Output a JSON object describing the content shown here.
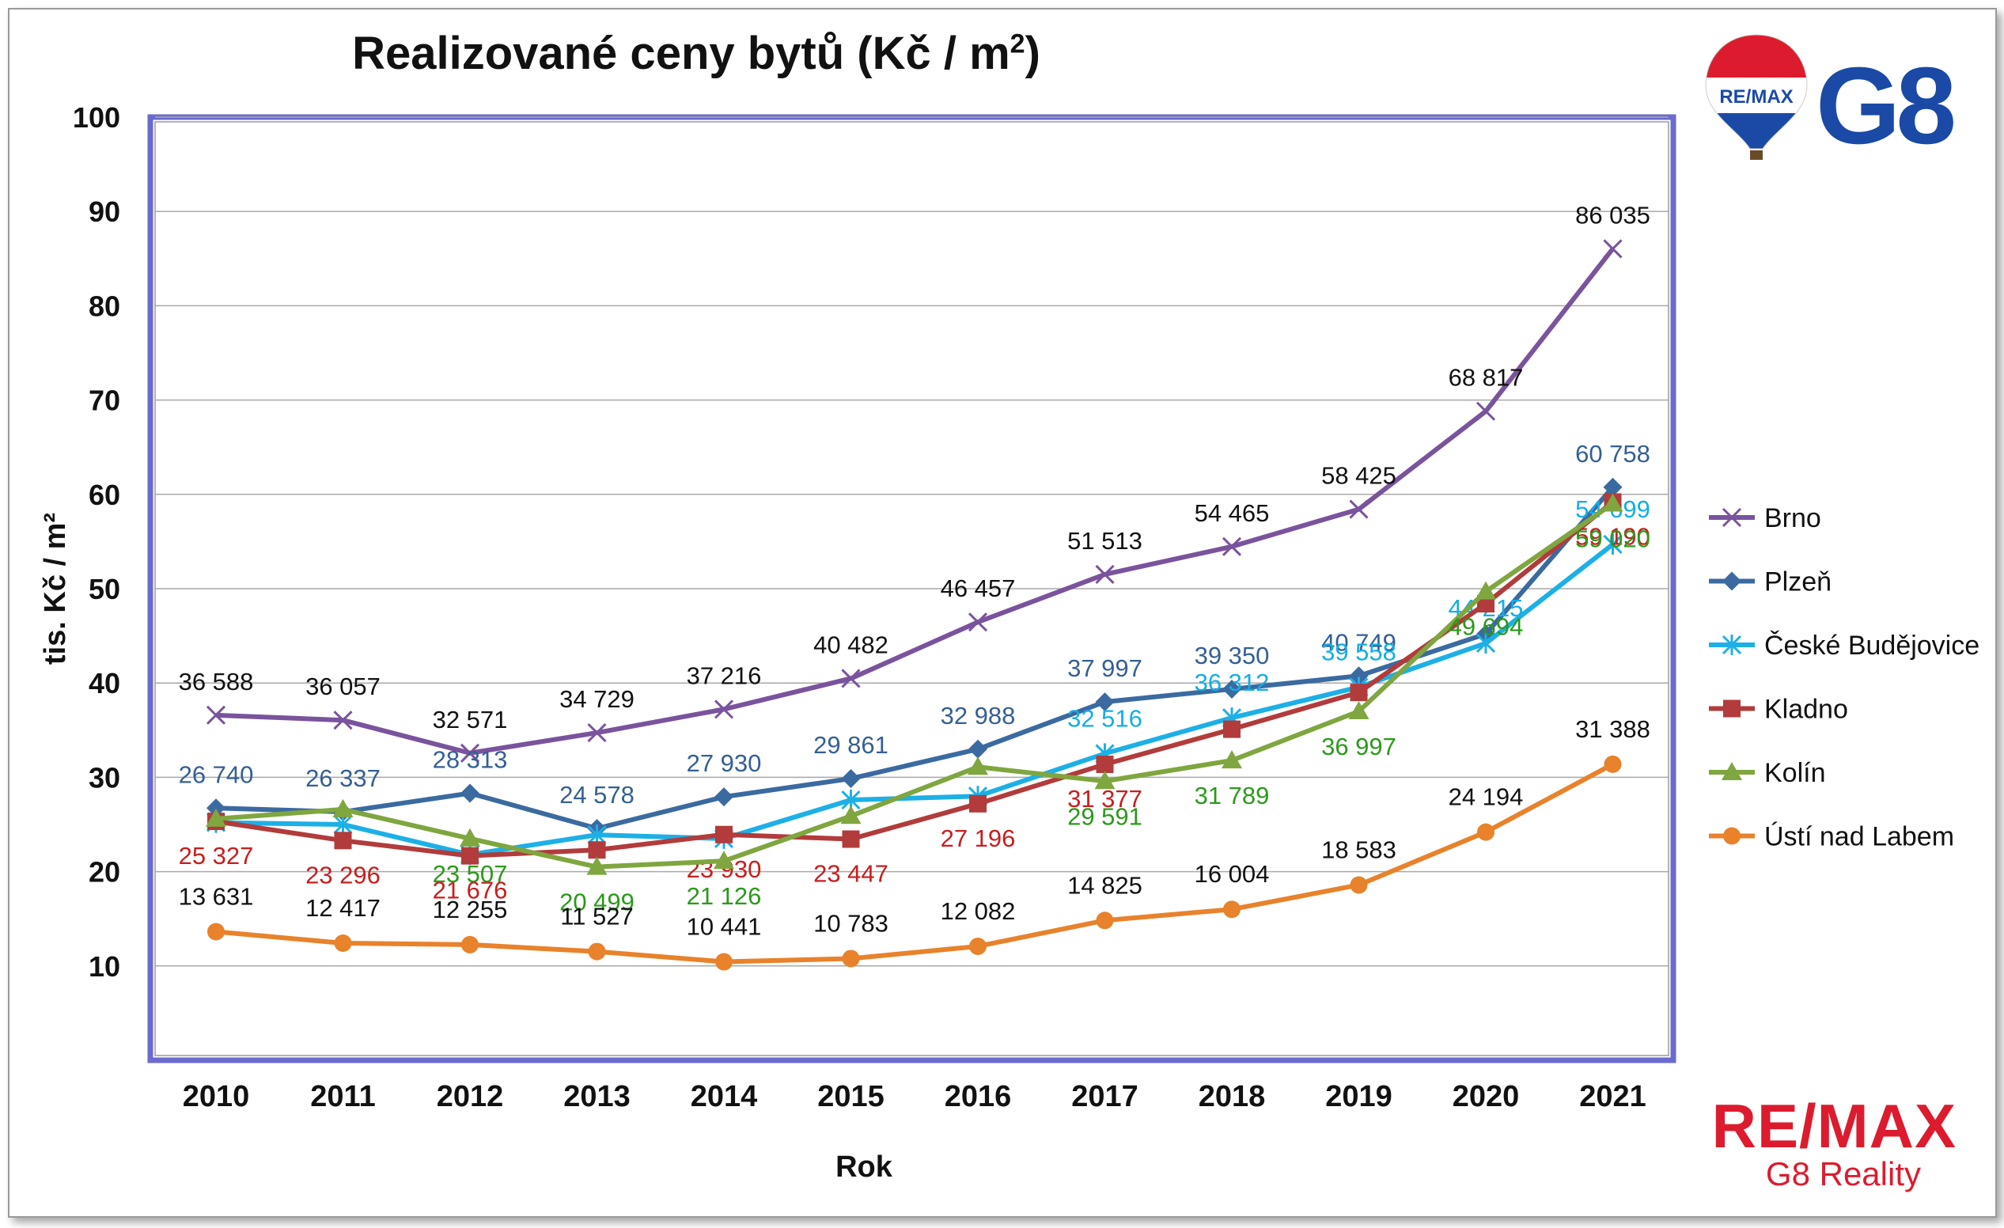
{
  "chart_data": {
    "type": "line",
    "title": "Realizované ceny bytů (Kč / m",
    "title_sup": "2",
    "title_end": ")",
    "xlabel": "Rok",
    "ylabel": "tis. Kč / m²",
    "ylim": [
      0,
      100
    ],
    "yticks": [
      10,
      20,
      30,
      40,
      50,
      60,
      70,
      80,
      90,
      100
    ],
    "grid": true,
    "legend_position": "right",
    "x": [
      "2010",
      "2011",
      "2012",
      "2013",
      "2014",
      "2015",
      "2016",
      "2017",
      "2018",
      "2019",
      "2020",
      "2021"
    ],
    "series": [
      {
        "name": "Brno",
        "color": "#7a539d",
        "label_color": "#111111",
        "marker": "x",
        "values": [
          36.588,
          36.057,
          32.571,
          34.729,
          37.216,
          40.482,
          46.457,
          51.513,
          54.465,
          58.425,
          68.817,
          86.035
        ],
        "labels": [
          "36 588",
          "36 057",
          "32 571",
          "34 729",
          "37 216",
          "40 482",
          "46 457",
          "51 513",
          "54 465",
          "58 425",
          "68 817",
          "86 035"
        ]
      },
      {
        "name": "Plzeň",
        "color": "#3b6aa0",
        "label_color": "#355f95",
        "marker": "diamond",
        "values": [
          26.74,
          26.337,
          28.313,
          24.578,
          27.93,
          29.861,
          32.988,
          37.997,
          39.35,
          40.749,
          45.2,
          60.758
        ],
        "labels": [
          "26 740",
          "26 337",
          "28 313",
          "24 578",
          "27 930",
          "29 861",
          "32 988",
          "37 997",
          "39 350",
          "40 749",
          "",
          "60 758"
        ]
      },
      {
        "name": "České Budějovice",
        "color": "#1cb0e6",
        "label_color": "#12aee8",
        "marker": "asterisk",
        "values": [
          25.2,
          25.0,
          21.8,
          23.9,
          23.5,
          27.6,
          28.0,
          32.516,
          36.312,
          39.558,
          44.215,
          54.699
        ],
        "labels": [
          "",
          "",
          "",
          "",
          "",
          "",
          "",
          "32 516",
          "36 312",
          "39 558",
          "44 215",
          "54 699"
        ]
      },
      {
        "name": "Kladno",
        "color": "#b23b3b",
        "label_color": "#c81e1e",
        "marker": "square",
        "values": [
          25.327,
          23.296,
          21.676,
          22.3,
          23.93,
          23.447,
          27.196,
          31.377,
          35.1,
          39.0,
          48.4,
          59.19
        ],
        "labels": [
          "25 327",
          "23 296",
          "21 676",
          "",
          "23 930",
          "23 447",
          "27 196",
          "31 377",
          "",
          "",
          "",
          "59 190"
        ]
      },
      {
        "name": "Kolín",
        "color": "#7fa63f",
        "label_color": "#2a9a1a",
        "marker": "triangle",
        "values": [
          25.6,
          26.6,
          23.507,
          20.499,
          21.126,
          25.9,
          31.1,
          29.591,
          31.789,
          36.997,
          49.694,
          59.02
        ],
        "labels": [
          "",
          "",
          "23 507",
          "20 499",
          "21 126",
          "",
          "",
          "29 591",
          "31 789",
          "36 997",
          "49 694",
          "59 020"
        ]
      },
      {
        "name": "Ústí nad Labem",
        "color": "#e8822b",
        "label_color": "#111111",
        "marker": "circle",
        "values": [
          13.631,
          12.417,
          12.255,
          11.527,
          10.441,
          10.783,
          12.082,
          14.825,
          16.004,
          18.583,
          24.194,
          31.388
        ],
        "labels": [
          "13 631",
          "12 417",
          "12 255",
          "11 527",
          "10 441",
          "10 783",
          "12 082",
          "14 825",
          "16 004",
          "18 583",
          "24 194",
          "31 388"
        ]
      }
    ]
  },
  "brand": {
    "balloon_text": "RE/MAX",
    "g8": "G8",
    "name": "RE/MAX",
    "sub": "G8 Reality"
  }
}
